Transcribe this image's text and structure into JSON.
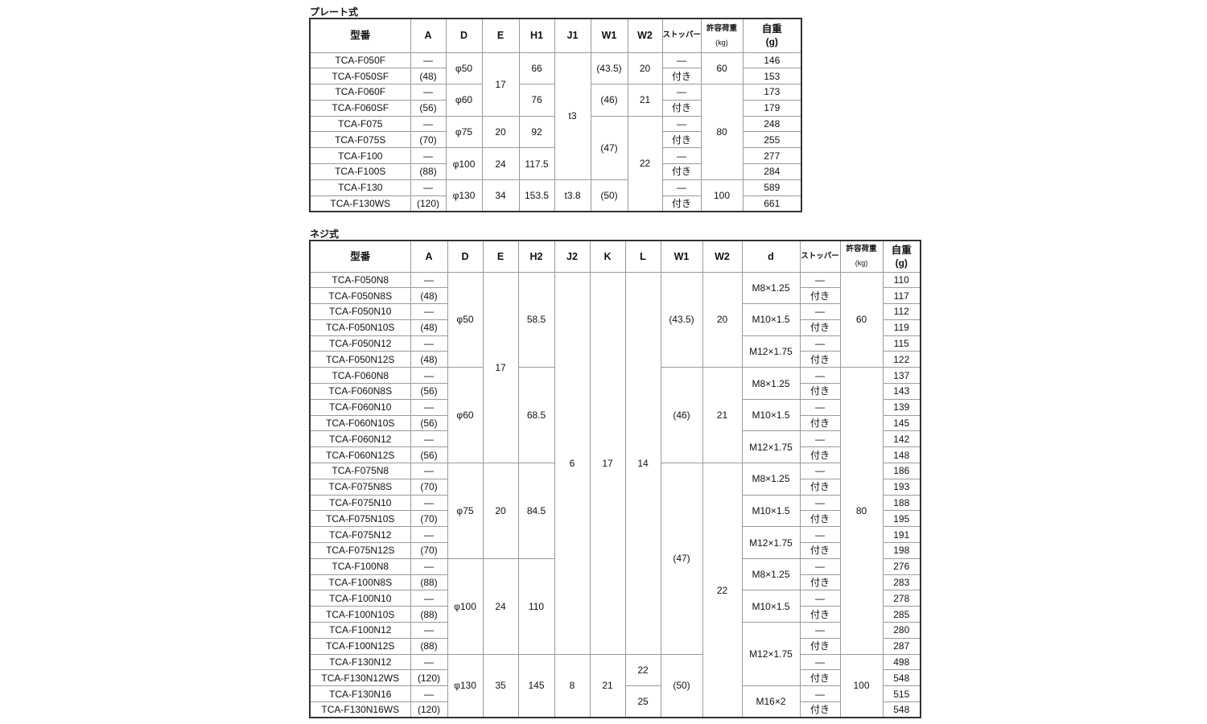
{
  "plate": {
    "title": "プレート式",
    "headers": [
      {
        "label": "型番"
      },
      {
        "label": "A"
      },
      {
        "label": "D"
      },
      {
        "label": "E"
      },
      {
        "label": "H1"
      },
      {
        "label": "J1"
      },
      {
        "label": "W1"
      },
      {
        "label": "W2"
      },
      {
        "label": "ストッパー",
        "small": true
      },
      {
        "label": "許容荷重",
        "unit": "(kg)",
        "small": true
      },
      {
        "label": "自重",
        "unit": "(g)",
        "big": true
      }
    ],
    "rows": [
      [
        [
          "TCA-F050F"
        ],
        [
          "—"
        ],
        [
          "φ50",
          2
        ],
        [
          "17",
          4
        ],
        [
          "66",
          2
        ],
        [
          "t3",
          8
        ],
        [
          "(43.5)",
          2
        ],
        [
          "20",
          2
        ],
        [
          "—"
        ],
        [
          "60",
          2
        ],
        [
          "146"
        ]
      ],
      [
        [
          "TCA-F050SF"
        ],
        [
          "(48)"
        ],
        [
          "付き"
        ],
        [
          "153"
        ]
      ],
      [
        [
          "TCA-F060F"
        ],
        [
          "—"
        ],
        [
          "φ60",
          2
        ],
        [
          "76",
          2
        ],
        [
          "(46)",
          2
        ],
        [
          "21",
          2
        ],
        [
          "—"
        ],
        [
          "80",
          6
        ],
        [
          "173"
        ]
      ],
      [
        [
          "TCA-F060SF"
        ],
        [
          "(56)"
        ],
        [
          "付き"
        ],
        [
          "179"
        ]
      ],
      [
        [
          "TCA-F075"
        ],
        [
          "—"
        ],
        [
          "φ75",
          2
        ],
        [
          "20",
          2
        ],
        [
          "92",
          2
        ],
        [
          "(47)",
          4
        ],
        [
          "22",
          6
        ],
        [
          "—"
        ],
        [
          "248"
        ]
      ],
      [
        [
          "TCA-F075S"
        ],
        [
          "(70)"
        ],
        [
          "付き"
        ],
        [
          "255"
        ]
      ],
      [
        [
          "TCA-F100"
        ],
        [
          "—"
        ],
        [
          "φ100",
          2
        ],
        [
          "24",
          2
        ],
        [
          "117.5",
          2
        ],
        [
          "—"
        ],
        [
          "277"
        ]
      ],
      [
        [
          "TCA-F100S"
        ],
        [
          "(88)"
        ],
        [
          "付き"
        ],
        [
          "284"
        ]
      ],
      [
        [
          "TCA-F130"
        ],
        [
          "—"
        ],
        [
          "φ130",
          2
        ],
        [
          "34",
          2
        ],
        [
          "153.5",
          2
        ],
        [
          "t3.8",
          2
        ],
        [
          "(50)",
          2
        ],
        [
          "—"
        ],
        [
          "100",
          2
        ],
        [
          "589"
        ]
      ],
      [
        [
          "TCA-F130WS"
        ],
        [
          "(120)"
        ],
        [
          "付き"
        ],
        [
          "661"
        ]
      ]
    ]
  },
  "screw": {
    "title": "ネジ式",
    "headers": [
      {
        "label": "型番"
      },
      {
        "label": "A"
      },
      {
        "label": "D"
      },
      {
        "label": "E"
      },
      {
        "label": "H2"
      },
      {
        "label": "J2"
      },
      {
        "label": "K"
      },
      {
        "label": "L"
      },
      {
        "label": "W1"
      },
      {
        "label": "W2"
      },
      {
        "label": "d"
      },
      {
        "label": "ストッパー",
        "small": true
      },
      {
        "label": "許容荷重",
        "unit": "(kg)",
        "small": true
      },
      {
        "label": "自重",
        "unit": "(g)",
        "big": true
      }
    ],
    "rows": [
      [
        [
          "TCA-F050N8"
        ],
        [
          "—"
        ],
        [
          "φ50",
          6
        ],
        [
          "17",
          12
        ],
        [
          "58.5",
          6
        ],
        [
          "6",
          24
        ],
        [
          "17",
          24
        ],
        [
          "14",
          24
        ],
        [
          "(43.5)",
          6
        ],
        [
          "20",
          6
        ],
        [
          "M8×1.25",
          2
        ],
        [
          "—"
        ],
        [
          "60",
          6
        ],
        [
          "110"
        ]
      ],
      [
        [
          "TCA-F050N8S"
        ],
        [
          "(48)"
        ],
        [
          "付き"
        ],
        [
          "117"
        ]
      ],
      [
        [
          "TCA-F050N10"
        ],
        [
          "—"
        ],
        [
          "M10×1.5",
          2
        ],
        [
          "—"
        ],
        [
          "112"
        ]
      ],
      [
        [
          "TCA-F050N10S"
        ],
        [
          "(48)"
        ],
        [
          "付き"
        ],
        [
          "119"
        ]
      ],
      [
        [
          "TCA-F050N12"
        ],
        [
          "—"
        ],
        [
          "M12×1.75",
          2
        ],
        [
          "—"
        ],
        [
          "115"
        ]
      ],
      [
        [
          "TCA-F050N12S"
        ],
        [
          "(48)"
        ],
        [
          "付き"
        ],
        [
          "122"
        ]
      ],
      [
        [
          "TCA-F060N8"
        ],
        [
          "—"
        ],
        [
          "φ60",
          6
        ],
        [
          "68.5",
          6
        ],
        [
          "(46)",
          6
        ],
        [
          "21",
          6
        ],
        [
          "M8×1.25",
          2
        ],
        [
          "—"
        ],
        [
          "80",
          18
        ],
        [
          "137"
        ]
      ],
      [
        [
          "TCA-F060N8S"
        ],
        [
          "(56)"
        ],
        [
          "付き"
        ],
        [
          "143"
        ]
      ],
      [
        [
          "TCA-F060N10"
        ],
        [
          "—"
        ],
        [
          "M10×1.5",
          2
        ],
        [
          "—"
        ],
        [
          "139"
        ]
      ],
      [
        [
          "TCA-F060N10S"
        ],
        [
          "(56)"
        ],
        [
          "付き"
        ],
        [
          "145"
        ]
      ],
      [
        [
          "TCA-F060N12"
        ],
        [
          "—"
        ],
        [
          "M12×1.75",
          2
        ],
        [
          "—"
        ],
        [
          "142"
        ]
      ],
      [
        [
          "TCA-F060N12S"
        ],
        [
          "(56)"
        ],
        [
          "付き"
        ],
        [
          "148"
        ]
      ],
      [
        [
          "TCA-F075N8"
        ],
        [
          "—"
        ],
        [
          "φ75",
          6
        ],
        [
          "20",
          6
        ],
        [
          "84.5",
          6
        ],
        [
          "(47)",
          12
        ],
        [
          "22",
          16
        ],
        [
          "M8×1.25",
          2
        ],
        [
          "—"
        ],
        [
          "186"
        ]
      ],
      [
        [
          "TCA-F075N8S"
        ],
        [
          "(70)"
        ],
        [
          "付き"
        ],
        [
          "193"
        ]
      ],
      [
        [
          "TCA-F075N10"
        ],
        [
          "—"
        ],
        [
          "M10×1.5",
          2
        ],
        [
          "—"
        ],
        [
          "188"
        ]
      ],
      [
        [
          "TCA-F075N10S"
        ],
        [
          "(70)"
        ],
        [
          "付き"
        ],
        [
          "195"
        ]
      ],
      [
        [
          "TCA-F075N12"
        ],
        [
          "—"
        ],
        [
          "M12×1.75",
          2
        ],
        [
          "—"
        ],
        [
          "191"
        ]
      ],
      [
        [
          "TCA-F075N12S"
        ],
        [
          "(70)"
        ],
        [
          "付き"
        ],
        [
          "198"
        ]
      ],
      [
        [
          "TCA-F100N8"
        ],
        [
          "—"
        ],
        [
          "φ100",
          6
        ],
        [
          "24",
          6
        ],
        [
          "110",
          6
        ],
        [
          "M8×1.25",
          2
        ],
        [
          "—"
        ],
        [
          "276"
        ]
      ],
      [
        [
          "TCA-F100N8S"
        ],
        [
          "(88)"
        ],
        [
          "付き"
        ],
        [
          "283"
        ]
      ],
      [
        [
          "TCA-F100N10"
        ],
        [
          "—"
        ],
        [
          "M10×1.5",
          2
        ],
        [
          "—"
        ],
        [
          "278"
        ]
      ],
      [
        [
          "TCA-F100N10S"
        ],
        [
          "(88)"
        ],
        [
          "付き"
        ],
        [
          "285"
        ]
      ],
      [
        [
          "TCA-F100N12"
        ],
        [
          "—"
        ],
        [
          "M12×1.75",
          4
        ],
        [
          "—"
        ],
        [
          "280"
        ]
      ],
      [
        [
          "TCA-F100N12S"
        ],
        [
          "(88)"
        ],
        [
          "付き"
        ],
        [
          "287"
        ]
      ],
      [
        [
          "TCA-F130N12"
        ],
        [
          "—"
        ],
        [
          "φ130",
          4
        ],
        [
          "35",
          4
        ],
        [
          "145",
          4
        ],
        [
          "8",
          4
        ],
        [
          "21",
          4
        ],
        [
          "22",
          2
        ],
        [
          "(50)",
          4
        ],
        [
          "—"
        ],
        [
          "100",
          4
        ],
        [
          "498"
        ]
      ],
      [
        [
          "TCA-F130N12WS"
        ],
        [
          "(120)"
        ],
        [
          "付き"
        ],
        [
          "548"
        ]
      ],
      [
        [
          "TCA-F130N16"
        ],
        [
          "—"
        ],
        [
          "25",
          2
        ],
        [
          "M16×2",
          2
        ],
        [
          "—"
        ],
        [
          "515"
        ]
      ],
      [
        [
          "TCA-F130N16WS"
        ],
        [
          "(120)"
        ],
        [
          "付き"
        ],
        [
          "548"
        ]
      ]
    ]
  }
}
